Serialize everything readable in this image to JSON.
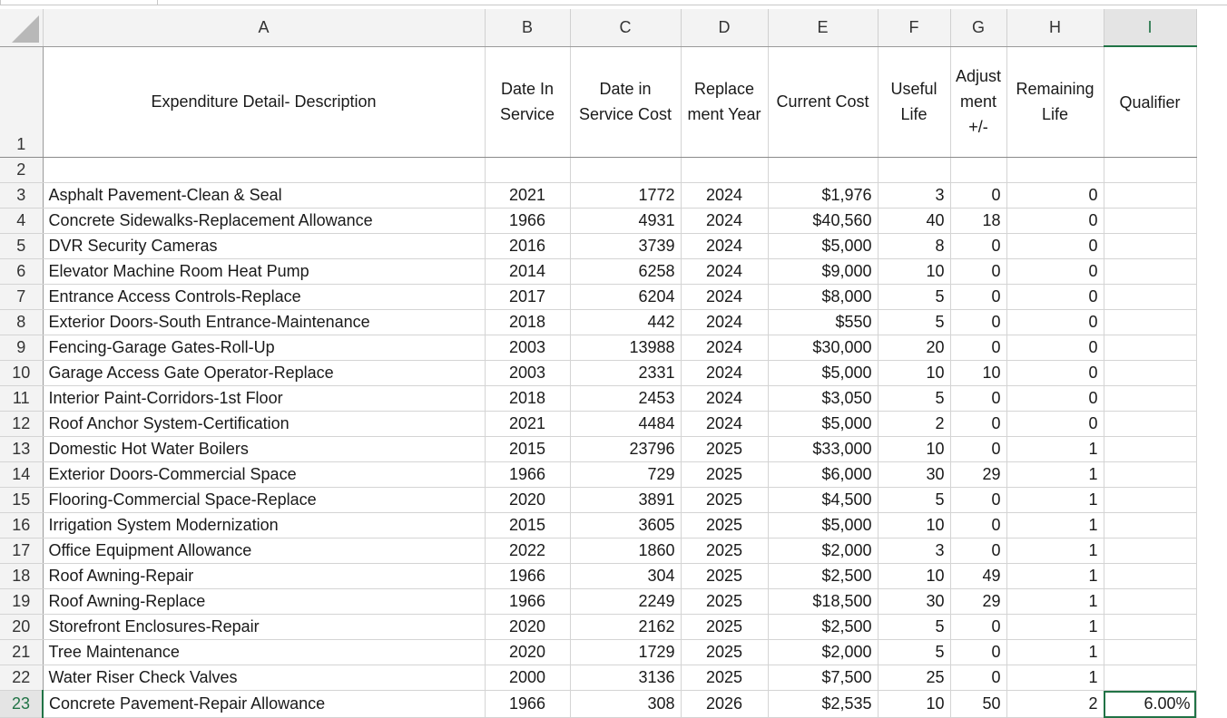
{
  "columns": {
    "A": "A",
    "B": "B",
    "C": "C",
    "D": "D",
    "E": "E",
    "F": "F",
    "G": "G",
    "H": "H",
    "I": "I"
  },
  "header_row": {
    "row_number": "1",
    "description": "Expenditure Detail- Description",
    "date_in_service": "Date In Service",
    "date_in_service_cost": "Date in Service Cost",
    "replacement_year": "Replace ment Year",
    "current_cost": "Current Cost",
    "useful_life": "Useful Life",
    "adjustment": "Adjust ment +/-",
    "remaining_life": "Remaining Life",
    "qualifier": "Qualifier"
  },
  "blank_row": {
    "row_number": "2"
  },
  "rows": [
    {
      "n": "3",
      "desc": "Asphalt Pavement-Clean & Seal",
      "b": "2021",
      "c": "1772",
      "d": "2024",
      "e": "$1,976",
      "f": "3",
      "g": "0",
      "h": "0",
      "i": ""
    },
    {
      "n": "4",
      "desc": "Concrete Sidewalks-Replacement Allowance",
      "b": "1966",
      "c": "4931",
      "d": "2024",
      "e": "$40,560",
      "f": "40",
      "g": "18",
      "h": "0",
      "i": ""
    },
    {
      "n": "5",
      "desc": "DVR Security Cameras",
      "b": "2016",
      "c": "3739",
      "d": "2024",
      "e": "$5,000",
      "f": "8",
      "g": "0",
      "h": "0",
      "i": ""
    },
    {
      "n": "6",
      "desc": "Elevator Machine Room Heat Pump",
      "b": "2014",
      "c": "6258",
      "d": "2024",
      "e": "$9,000",
      "f": "10",
      "g": "0",
      "h": "0",
      "i": ""
    },
    {
      "n": "7",
      "desc": "Entrance Access Controls-Replace",
      "b": "2017",
      "c": "6204",
      "d": "2024",
      "e": "$8,000",
      "f": "5",
      "g": "0",
      "h": "0",
      "i": ""
    },
    {
      "n": "8",
      "desc": "Exterior Doors-South Entrance-Maintenance",
      "b": "2018",
      "c": "442",
      "d": "2024",
      "e": "$550",
      "f": "5",
      "g": "0",
      "h": "0",
      "i": ""
    },
    {
      "n": "9",
      "desc": "Fencing-Garage Gates-Roll-Up",
      "b": "2003",
      "c": "13988",
      "d": "2024",
      "e": "$30,000",
      "f": "20",
      "g": "0",
      "h": "0",
      "i": ""
    },
    {
      "n": "10",
      "desc": "Garage Access Gate Operator-Replace",
      "b": "2003",
      "c": "2331",
      "d": "2024",
      "e": "$5,000",
      "f": "10",
      "g": "10",
      "h": "0",
      "i": ""
    },
    {
      "n": "11",
      "desc": "Interior Paint-Corridors-1st Floor",
      "b": "2018",
      "c": "2453",
      "d": "2024",
      "e": "$3,050",
      "f": "5",
      "g": "0",
      "h": "0",
      "i": ""
    },
    {
      "n": "12",
      "desc": "Roof Anchor System-Certification",
      "b": "2021",
      "c": "4484",
      "d": "2024",
      "e": "$5,000",
      "f": "2",
      "g": "0",
      "h": "0",
      "i": ""
    },
    {
      "n": "13",
      "desc": "Domestic Hot Water Boilers",
      "b": "2015",
      "c": "23796",
      "d": "2025",
      "e": "$33,000",
      "f": "10",
      "g": "0",
      "h": "1",
      "i": ""
    },
    {
      "n": "14",
      "desc": "Exterior Doors-Commercial Space",
      "b": "1966",
      "c": "729",
      "d": "2025",
      "e": "$6,000",
      "f": "30",
      "g": "29",
      "h": "1",
      "i": ""
    },
    {
      "n": "15",
      "desc": "Flooring-Commercial Space-Replace",
      "b": "2020",
      "c": "3891",
      "d": "2025",
      "e": "$4,500",
      "f": "5",
      "g": "0",
      "h": "1",
      "i": ""
    },
    {
      "n": "16",
      "desc": "Irrigation System Modernization",
      "b": "2015",
      "c": "3605",
      "d": "2025",
      "e": "$5,000",
      "f": "10",
      "g": "0",
      "h": "1",
      "i": ""
    },
    {
      "n": "17",
      "desc": "Office Equipment Allowance",
      "b": "2022",
      "c": "1860",
      "d": "2025",
      "e": "$2,000",
      "f": "3",
      "g": "0",
      "h": "1",
      "i": ""
    },
    {
      "n": "18",
      "desc": "Roof Awning-Repair",
      "b": "1966",
      "c": "304",
      "d": "2025",
      "e": "$2,500",
      "f": "10",
      "g": "49",
      "h": "1",
      "i": ""
    },
    {
      "n": "19",
      "desc": "Roof Awning-Replace",
      "b": "1966",
      "c": "2249",
      "d": "2025",
      "e": "$18,500",
      "f": "30",
      "g": "29",
      "h": "1",
      "i": ""
    },
    {
      "n": "20",
      "desc": "Storefront Enclosures-Repair",
      "b": "2020",
      "c": "2162",
      "d": "2025",
      "e": "$2,500",
      "f": "5",
      "g": "0",
      "h": "1",
      "i": ""
    },
    {
      "n": "21",
      "desc": "Tree Maintenance",
      "b": "2020",
      "c": "1729",
      "d": "2025",
      "e": "$2,000",
      "f": "5",
      "g": "0",
      "h": "1",
      "i": ""
    },
    {
      "n": "22",
      "desc": "Water Riser Check Valves",
      "b": "2000",
      "c": "3136",
      "d": "2025",
      "e": "$7,500",
      "f": "25",
      "g": "0",
      "h": "1",
      "i": ""
    },
    {
      "n": "23",
      "desc": "Concrete Pavement-Repair Allowance",
      "b": "1966",
      "c": "308",
      "d": "2026",
      "e": "$2,535",
      "f": "10",
      "g": "50",
      "h": "2",
      "i": "6.00%"
    }
  ],
  "active_cell": "I23",
  "colors": {
    "accent_green": "#217346",
    "header_bg": "#f3f3f3",
    "grid": "#d4d4d4"
  }
}
